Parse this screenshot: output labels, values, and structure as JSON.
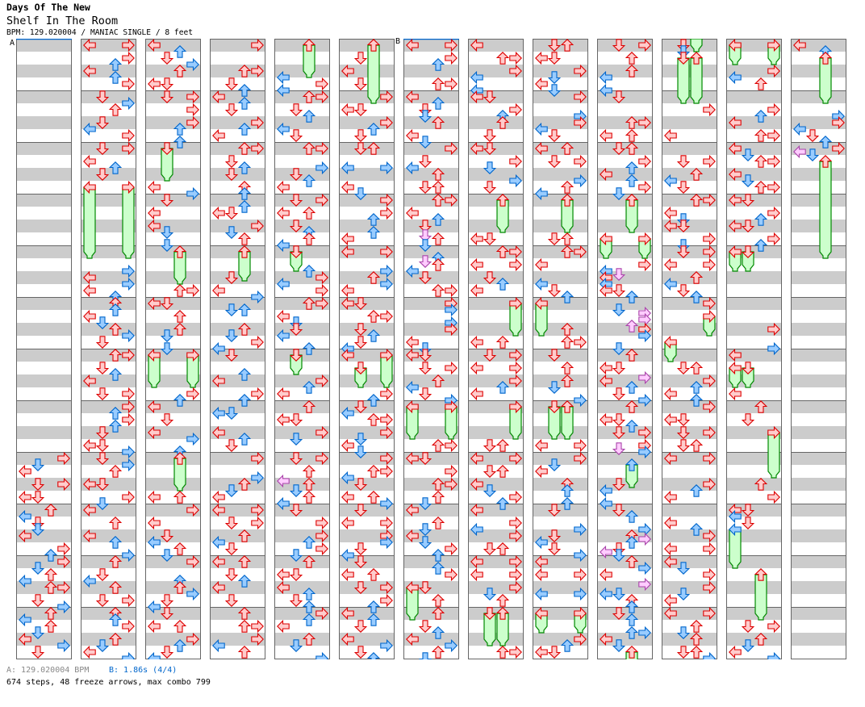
{
  "header": {
    "artist": "Days Of The New",
    "title": "Shelf In The Room",
    "info": "BPM: 129.020004 / MANIAC SINGLE / 8 feet"
  },
  "markers": [
    {
      "label": "A",
      "column": 1
    },
    {
      "label": "B",
      "column": 7
    }
  ],
  "footer": {
    "a_label": "A: 129.020004 BPM",
    "b_label": "B: 1.86s (4/4)",
    "stats": "674 steps, 48 freeze arrows, max combo 799"
  },
  "colors": {
    "quarter_fill": "#ffcccc",
    "quarter_stroke": "#dd0000",
    "eighth_fill": "#99ccff",
    "eighth_stroke": "#0066cc",
    "sixteenth_fill": "#ffccff",
    "sixteenth_stroke": "#aa44aa",
    "freeze_fill": "#ccffcc",
    "freeze_stroke": "#008800",
    "band": "#cccccc",
    "grid": "#666666",
    "marker": "#0066cc"
  },
  "chart": {
    "measures_per_column": 12,
    "steps_per_measure": 16,
    "lane_encoding": "hex bitmask per 16th step: 1=left 2=down 4=up 8=right",
    "columns": [
      [
        "0000000000000000",
        "0000000000000000",
        "0000000000000000",
        "0000000000000000",
        "0000000000000000",
        "0000000000000000",
        "0000000000000000",
        "0000000000000000",
        "80201000A0003000",
        "4010202010008040",
        "80204010C0002080",
        "4010402010802000"
      ],
      [
        "9000804010408000",
        "2080400020108000",
        "A000104020009000",
        "0000000000000000",
        "0000008010801040",
        "4040102040802000",
        "C00020401000A000",
        "8040804020003080",
        "2080400030008020",
        "1000400010400080",
        "400020104000A000",
        "4040800040201080"
      ],
      [
        "1040208040003000",
        "A000800080400040",
        "2000000000001080",
        "2000100010200020",
        "400000000000C000",
        "3000400040200020",
        "9000000000008040",
        "1000200010800040",
        "4000000000005000",
        "8000100020104020",
        "8000004040802010",
        "2000500080402010"
      ],
      [
        "80000000C0002040",
        "1040200080401000",
        "C000204020004040",
        "0040300080204000",
        "4000000020001080",
        "0060000040208010",
        "2000004010008040",
        "0030000010402000",
        "8000008040201000",
        "9000A00040102000",
        "5000204010002000",
        "4000C00080104000"
      ],
      [
        "4000000000108010",
        "C000204000102000",
        "C000008020401000",
        "A000500020404010",
        "2000004080108000",
        "C000102020100040",
        "2000000080401000",
        "4000300080200000",
        "A000400140204010",
        "2000800080408020",
        "4000300010402040",
        "8040100040200080"
      ],
      [
        "4000200010002000",
        "8000300080402000",
        "6000009000001020",
        "8000804000401000",
        "9000008040801000",
        "3000C00020402010",
        "9000200000008040",
        "2010C00080201020",
        "8000C01020005080",
        "2000900080802010",
        "20005000A0008040",
        "1040200010802040"
      ],
      [
        "900080400000C000",
        "1040202040001020",
        "8000201040006000",
        "C000104020024020",
        "004240102000C000",
        "8080008080001020",
        "3000A00040102080",
        "900000000000C000",
        "30008000C0004020",
        "1000402010208040",
        "0040800030004000",
        "4000204010804020"
      ],
      [
        "1000C00080100010",
        "3000804040002000",
        "3000802000802000",
        "4000000000003000",
        "C000900020401000",
        "8000000000005000",
        "A000900080401000",
        "8000000000006000",
        "9000600010208040",
        "1000801080006000",
        "9000900080204000",
        "600000000000C000"
      ],
      [
        "6000300080201020",
        "8000008080102000",
        "5000A00000804010",
        "4000000000006000",
        "C000100000102040",
        "100000004000C000",
        "2000400040200080",
        "6000000000009000",
        "8020100040400040",
        "2000008020102080",
        "1000900000900000",
        "9000000080403000"
      ],
      [
        "A000400040100010",
        "20000000C0005000",
        "6000804010408020",
        "4000000000009000",
        "0000801210103040",
        "0028080480800020",
        "4000300810402080",
        "40003040A0008280",
        "0040000020100010",
        "2040008048402120",
        "4080100800304040",
        "204000C010204000"
      ],
      [
        "2020600000000000",
        "0000800000001000",
        "0000A00040102000",
        "C000102030008020",
        "A000900040102040",
        "8000800000001000",
        "0000600080401040",
        "80003000A0006000",
        "9000000080401000",
        "0000104080009000",
        "1020800080201000",
        "9000402040006080"
      ],
      [
        "9000000080104000",
        "000080401000C000",
        "1020C0001020C000",
        "3000804030008040",
        "3000000000000000",
        "0000000080000080",
        "1000300000001000",
        "4000200080000000",
        "0000000040008000",
        "3010201000000000",
        "0000400000000000",
        "0000A00040201080"
      ],
      [
        "1040400000000000",
        "0000008080102040",
        "8120400000000000",
        "0000000000000000",
        "0000000000000000",
        "0000000000000000",
        "0000000000000000",
        "0000000000000000",
        "0000000000000000",
        "0000000000000000",
        "0000000000000000",
        "0000000000000000"
      ]
    ],
    "freezes": [
      {
        "col": 2,
        "lane": 0,
        "start": 44,
        "end": 64
      },
      {
        "col": 2,
        "lane": 3,
        "start": 44,
        "end": 64
      },
      {
        "col": 3,
        "lane": 1,
        "start": 32,
        "end": 40
      },
      {
        "col": 3,
        "lane": 2,
        "start": 64,
        "end": 72
      },
      {
        "col": 3,
        "lane": 0,
        "start": 96,
        "end": 104
      },
      {
        "col": 3,
        "lane": 3,
        "start": 96,
        "end": 104
      },
      {
        "col": 3,
        "lane": 2,
        "start": 128,
        "end": 136
      },
      {
        "col": 4,
        "lane": 2,
        "start": 64,
        "end": 71
      },
      {
        "col": 5,
        "lane": 2,
        "start": 0,
        "end": 8
      },
      {
        "col": 5,
        "lane": 1,
        "start": 64,
        "end": 68
      },
      {
        "col": 5,
        "lane": 1,
        "start": 96,
        "end": 100
      },
      {
        "col": 6,
        "lane": 2,
        "start": 0,
        "end": 16
      },
      {
        "col": 6,
        "lane": 3,
        "start": 96,
        "end": 104
      },
      {
        "col": 6,
        "lane": 1,
        "start": 100,
        "end": 104
      },
      {
        "col": 7,
        "lane": 0,
        "start": 112,
        "end": 120
      },
      {
        "col": 7,
        "lane": 3,
        "start": 112,
        "end": 120
      },
      {
        "col": 7,
        "lane": 0,
        "start": 168,
        "end": 176
      },
      {
        "col": 8,
        "lane": 2,
        "start": 48,
        "end": 56
      },
      {
        "col": 8,
        "lane": 3,
        "start": 80,
        "end": 88
      },
      {
        "col": 8,
        "lane": 3,
        "start": 112,
        "end": 120
      },
      {
        "col": 8,
        "lane": 1,
        "start": 176,
        "end": 184
      },
      {
        "col": 8,
        "lane": 2,
        "start": 176,
        "end": 184
      },
      {
        "col": 9,
        "lane": 2,
        "start": 48,
        "end": 56
      },
      {
        "col": 9,
        "lane": 0,
        "start": 80,
        "end": 88
      },
      {
        "col": 9,
        "lane": 1,
        "start": 112,
        "end": 120
      },
      {
        "col": 9,
        "lane": 2,
        "start": 112,
        "end": 120
      },
      {
        "col": 9,
        "lane": 0,
        "start": 176,
        "end": 180
      },
      {
        "col": 9,
        "lane": 3,
        "start": 176,
        "end": 180
      },
      {
        "col": 10,
        "lane": 2,
        "start": 48,
        "end": 56
      },
      {
        "col": 10,
        "lane": 0,
        "start": 60,
        "end": 64
      },
      {
        "col": 10,
        "lane": 3,
        "start": 60,
        "end": 64
      },
      {
        "col": 10,
        "lane": 2,
        "start": 130,
        "end": 135
      },
      {
        "col": 10,
        "lane": 2,
        "start": 188,
        "end": 196
      },
      {
        "col": 11,
        "lane": 2,
        "start": -8,
        "end": 0
      },
      {
        "col": 11,
        "lane": 1,
        "start": 4,
        "end": 16
      },
      {
        "col": 11,
        "lane": 2,
        "start": 4,
        "end": 16
      },
      {
        "col": 11,
        "lane": 3,
        "start": 84,
        "end": 88
      },
      {
        "col": 11,
        "lane": 0,
        "start": 92,
        "end": 96
      },
      {
        "col": 12,
        "lane": 0,
        "start": 0,
        "end": 4
      },
      {
        "col": 12,
        "lane": 3,
        "start": 0,
        "end": 4
      },
      {
        "col": 12,
        "lane": 0,
        "start": 64,
        "end": 68
      },
      {
        "col": 12,
        "lane": 1,
        "start": 64,
        "end": 68
      },
      {
        "col": 12,
        "lane": 0,
        "start": 100,
        "end": 104
      },
      {
        "col": 12,
        "lane": 1,
        "start": 100,
        "end": 104
      },
      {
        "col": 12,
        "lane": 3,
        "start": 120,
        "end": 132
      },
      {
        "col": 12,
        "lane": 0,
        "start": 150,
        "end": 160
      },
      {
        "col": 12,
        "lane": 2,
        "start": 164,
        "end": 176
      },
      {
        "col": 13,
        "lane": 2,
        "start": 4,
        "end": 16
      },
      {
        "col": 13,
        "lane": 2,
        "start": 36,
        "end": 64
      }
    ]
  }
}
